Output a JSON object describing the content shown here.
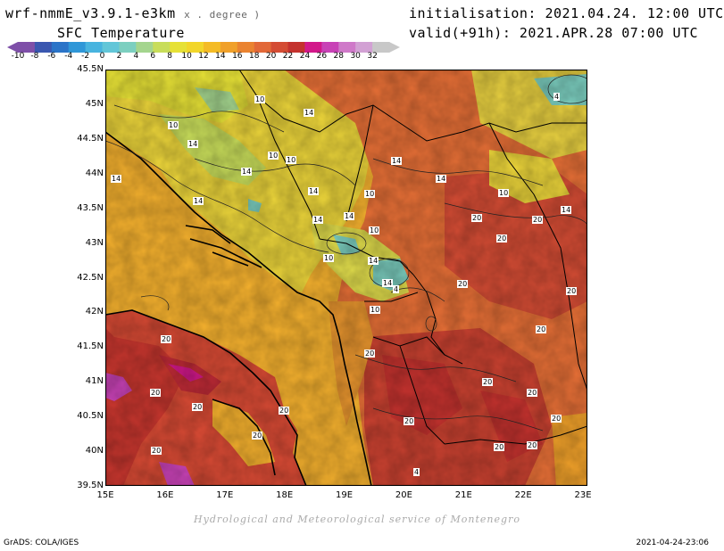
{
  "header": {
    "model": "wrf-nmmE_v3.9.1-e3km",
    "unit": "x . degree )",
    "field": "SFC Temperature",
    "init_label": "initialisation:",
    "init_value": "2021.04.24. 12:00 UTC",
    "valid_label": "valid(+91h):",
    "valid_value": "2021.APR.28 07:00 UTC"
  },
  "colorbar": {
    "labels": [
      "-10",
      "-8",
      "-6",
      "-4",
      "-2",
      "0",
      "2",
      "4",
      "6",
      "8",
      "10",
      "12",
      "14",
      "16",
      "18",
      "20",
      "22",
      "24",
      "26",
      "28",
      "30",
      "32"
    ],
    "colors": [
      "#7e4fa8",
      "#3a57b0",
      "#2b74c8",
      "#2f97d8",
      "#48b4df",
      "#62c6d8",
      "#7ccfc0",
      "#a4d58e",
      "#c8dd5a",
      "#e6e136",
      "#f2d62a",
      "#f4bb26",
      "#f0a02a",
      "#ea8330",
      "#e26838",
      "#d44c34",
      "#c4322e",
      "#d2188a",
      "#c842b6",
      "#cf79c9",
      "#d2a1d4",
      "#c8c8c8"
    ]
  },
  "map": {
    "lat_labels": [
      "45.5N",
      "45N",
      "44.5N",
      "44N",
      "43.5N",
      "43N",
      "42.5N",
      "42N",
      "41.5N",
      "41N",
      "40.5N",
      "40N",
      "39.5N"
    ],
    "lon_labels": [
      "15E",
      "16E",
      "17E",
      "18E",
      "19E",
      "20E",
      "21E",
      "22E",
      "23E"
    ],
    "contour_labels": [
      "4",
      "14",
      "10",
      "10",
      "14",
      "14",
      "10",
      "10",
      "14",
      "14",
      "14",
      "10",
      "14",
      "10",
      "14",
      "14",
      "10",
      "20",
      "20",
      "20",
      "20",
      "20",
      "20",
      "20",
      "20",
      "20",
      "20",
      "20",
      "20",
      "20",
      "20",
      "20",
      "20",
      "20",
      "20",
      "20",
      "4",
      "14",
      "10",
      "14",
      "10",
      "4",
      "14",
      "14"
    ]
  },
  "footer": {
    "credit": "Hydrological and Meteorological service of Montenegro",
    "software": "GrADS: COLA/IGES",
    "timestamp": "2021-04-24-23:06"
  }
}
